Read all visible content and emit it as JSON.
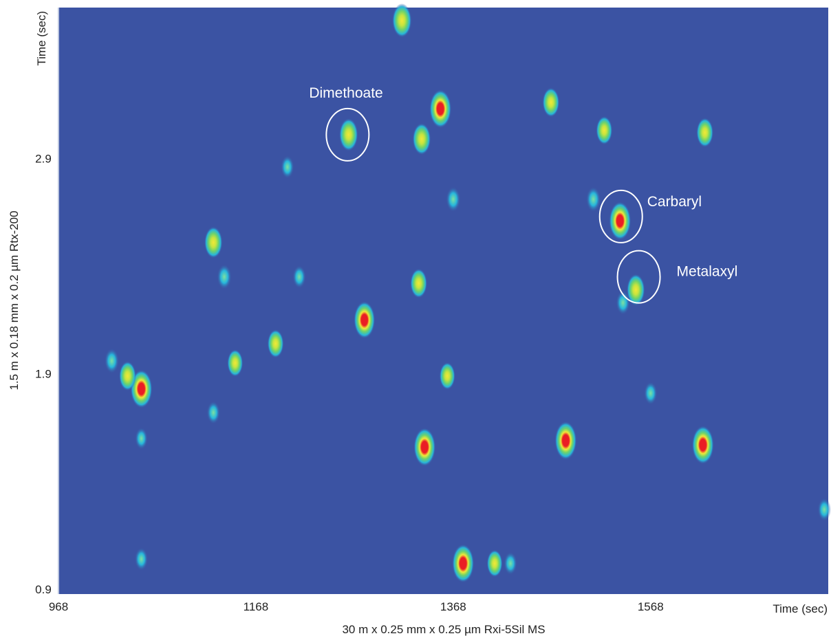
{
  "chart_data": {
    "type": "heatmap",
    "title": "",
    "xlabel": "30 m x 0.25 mm x 0.25 µm Rxi-5Sil MS",
    "x_unit_label": "Time (sec)",
    "ylabel": "1.5 m x 0.18 mm x 0.2 µm Rtx-200",
    "y_unit_label": "Time (sec)",
    "xlim": [
      968,
      1748
    ],
    "ylim": [
      0.9,
      3.6
    ],
    "x_ticks": [
      "968",
      "1168",
      "1368",
      "1568"
    ],
    "y_ticks": [
      "0.9",
      "1.9",
      "2.9"
    ],
    "grid": false,
    "colors": {
      "background": "#3b53a3",
      "low": "#27b6dc",
      "mid": "#6fd36a",
      "high": "#f1e838",
      "peak": "#ea1d24"
    },
    "peaks": [
      {
        "x": 1052,
        "y": 1.83,
        "intensity": 1.0
      },
      {
        "x": 1038,
        "y": 1.89,
        "intensity": 0.6
      },
      {
        "x": 1022,
        "y": 1.96,
        "intensity": 0.4
      },
      {
        "x": 1125,
        "y": 2.51,
        "intensity": 0.7
      },
      {
        "x": 1136,
        "y": 2.35,
        "intensity": 0.4
      },
      {
        "x": 1125,
        "y": 1.72,
        "intensity": 0.3
      },
      {
        "x": 1052,
        "y": 1.04,
        "intensity": 0.3
      },
      {
        "x": 1052,
        "y": 1.6,
        "intensity": 0.25
      },
      {
        "x": 1147,
        "y": 1.95,
        "intensity": 0.5
      },
      {
        "x": 1188,
        "y": 2.04,
        "intensity": 0.55
      },
      {
        "x": 1200,
        "y": 2.86,
        "intensity": 0.3
      },
      {
        "x": 1212,
        "y": 2.35,
        "intensity": 0.3
      },
      {
        "x": 1262,
        "y": 3.01,
        "intensity": 0.75
      },
      {
        "x": 1278,
        "y": 2.15,
        "intensity": 0.95
      },
      {
        "x": 1316,
        "y": 3.54,
        "intensity": 0.8
      },
      {
        "x": 1336,
        "y": 2.99,
        "intensity": 0.7
      },
      {
        "x": 1333,
        "y": 2.32,
        "intensity": 0.6
      },
      {
        "x": 1339,
        "y": 1.56,
        "intensity": 1.0
      },
      {
        "x": 1355,
        "y": 3.13,
        "intensity": 1.0
      },
      {
        "x": 1362,
        "y": 1.89,
        "intensity": 0.5
      },
      {
        "x": 1368,
        "y": 2.71,
        "intensity": 0.4
      },
      {
        "x": 1378,
        "y": 1.02,
        "intensity": 1.0
      },
      {
        "x": 1410,
        "y": 1.02,
        "intensity": 0.5
      },
      {
        "x": 1426,
        "y": 1.02,
        "intensity": 0.3
      },
      {
        "x": 1467,
        "y": 3.16,
        "intensity": 0.6
      },
      {
        "x": 1482,
        "y": 1.59,
        "intensity": 1.0
      },
      {
        "x": 1510,
        "y": 2.71,
        "intensity": 0.4
      },
      {
        "x": 1521,
        "y": 3.03,
        "intensity": 0.55
      },
      {
        "x": 1537,
        "y": 2.61,
        "intensity": 1.0
      },
      {
        "x": 1540,
        "y": 2.23,
        "intensity": 0.35
      },
      {
        "x": 1553,
        "y": 2.29,
        "intensity": 0.7
      },
      {
        "x": 1568,
        "y": 1.81,
        "intensity": 0.3
      },
      {
        "x": 1621,
        "y": 1.57,
        "intensity": 1.0
      },
      {
        "x": 1623,
        "y": 3.02,
        "intensity": 0.6
      },
      {
        "x": 1744,
        "y": 1.27,
        "intensity": 0.3
      }
    ],
    "annotations": [
      {
        "label": "Dimethoate",
        "x": 1261,
        "y": 3.01
      },
      {
        "label": "Carbaryl",
        "x": 1538,
        "y": 2.63
      },
      {
        "label": "Metalaxyl",
        "x": 1556,
        "y": 2.35
      }
    ]
  }
}
